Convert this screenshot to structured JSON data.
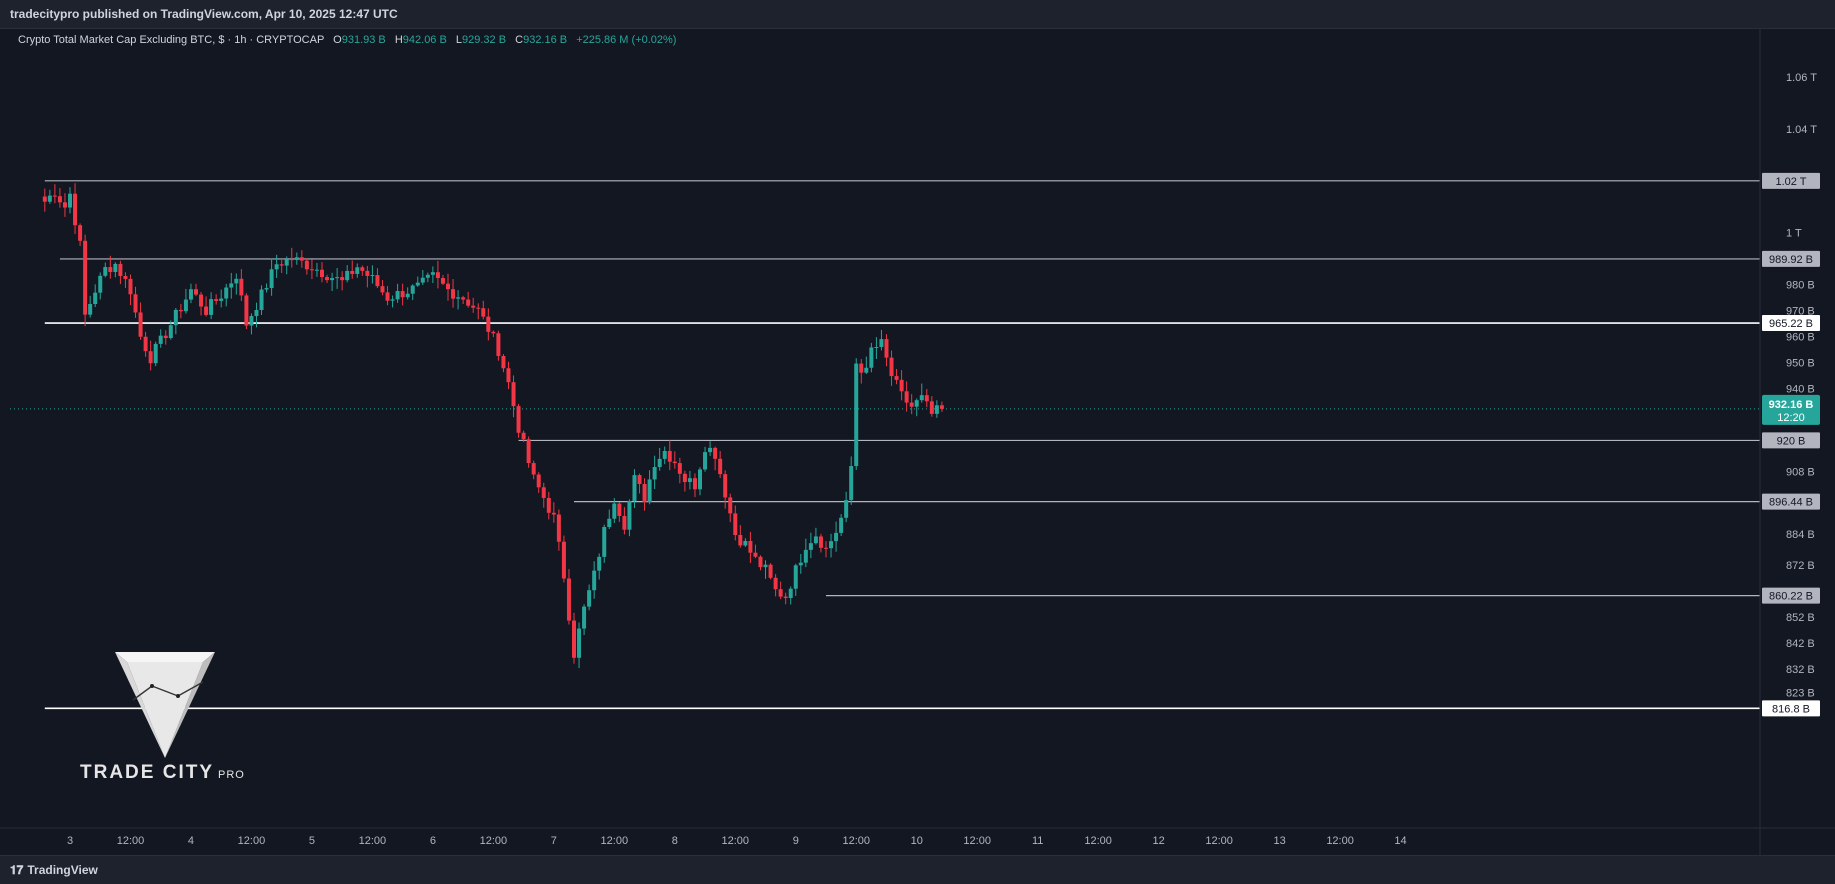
{
  "header": {
    "published": "tradecitypro published on TradingView.com, Apr 10, 2025 12:47 UTC"
  },
  "legend": {
    "symbol": "Crypto Total Market Cap Excluding BTC, $ · 1h · CRYPTOCAP",
    "o_label": "O",
    "o_value": "931.93 B",
    "h_label": "H",
    "h_value": "942.06 B",
    "l_label": "L",
    "l_value": "929.32 B",
    "c_label": "C",
    "c_value": "932.16 B",
    "change": "+225.86 M (+0.02%)"
  },
  "footer": {
    "brand": "TradingView",
    "icon": "tradingview-logo-icon"
  },
  "logo": {
    "text": "TRADE CITY",
    "suffix": "PRO",
    "icon": "trade-city-funnel-icon"
  },
  "colors": {
    "up": "#26a69a",
    "down": "#f23645",
    "background": "#131722",
    "level": "#b2b5be",
    "level_strong": "#ffffff"
  },
  "chart_data": {
    "type": "candlestick",
    "ylim": [
      810,
      1065
    ],
    "y_ticks": [
      {
        "value": 1060,
        "label": "1.06 T"
      },
      {
        "value": 1040,
        "label": "1.04 T"
      },
      {
        "value": 1000,
        "label": "1 T"
      },
      {
        "value": 980,
        "label": "980 B"
      },
      {
        "value": 970,
        "label": "970 B"
      },
      {
        "value": 960,
        "label": "960 B"
      },
      {
        "value": 950,
        "label": "950 B"
      },
      {
        "value": 940,
        "label": "940 B"
      },
      {
        "value": 908,
        "label": "908 B"
      },
      {
        "value": 884,
        "label": "884 B"
      },
      {
        "value": 872,
        "label": "872 B"
      },
      {
        "value": 852,
        "label": "852 B"
      },
      {
        "value": 842,
        "label": "842 B"
      },
      {
        "value": 832,
        "label": "832 B"
      },
      {
        "value": 823,
        "label": "823 B"
      }
    ],
    "x_ticks": [
      {
        "t": 0,
        "label": "3"
      },
      {
        "t": 12,
        "label": "12:00"
      },
      {
        "t": 24,
        "label": "4"
      },
      {
        "t": 36,
        "label": "12:00"
      },
      {
        "t": 48,
        "label": "5"
      },
      {
        "t": 60,
        "label": "12:00"
      },
      {
        "t": 72,
        "label": "6"
      },
      {
        "t": 84,
        "label": "12:00"
      },
      {
        "t": 96,
        "label": "7"
      },
      {
        "t": 108,
        "label": "12:00"
      },
      {
        "t": 120,
        "label": "8"
      },
      {
        "t": 132,
        "label": "12:00"
      },
      {
        "t": 144,
        "label": "9"
      },
      {
        "t": 156,
        "label": "12:00"
      },
      {
        "t": 168,
        "label": "10"
      },
      {
        "t": 180,
        "label": "12:00"
      },
      {
        "t": 192,
        "label": "11"
      },
      {
        "t": 204,
        "label": "12:00"
      },
      {
        "t": 216,
        "label": "12"
      },
      {
        "t": 228,
        "label": "12:00"
      },
      {
        "t": 240,
        "label": "13"
      },
      {
        "t": 252,
        "label": "12:00"
      },
      {
        "t": 264,
        "label": "14"
      }
    ],
    "levels": [
      {
        "value": 1020,
        "label": "1.02 T",
        "from_t": -5,
        "strong": false
      },
      {
        "value": 989.92,
        "label": "989.92 B",
        "from_t": -2,
        "strong": false
      },
      {
        "value": 965.22,
        "label": "965.22 B",
        "from_t": -5,
        "strong": true
      },
      {
        "value": 920,
        "label": "920 B",
        "from_t": 89,
        "strong": false
      },
      {
        "value": 896.44,
        "label": "896.44 B",
        "from_t": 100,
        "strong": false
      },
      {
        "value": 860.22,
        "label": "860.22 B",
        "from_t": 150,
        "strong": false
      },
      {
        "value": 816.8,
        "label": "816.8 B",
        "from_t": -5,
        "strong": true
      }
    ],
    "last_price": {
      "value": 932.16,
      "label": "932.16 B",
      "countdown": "12:20"
    },
    "keypoints": [
      {
        "t": -5,
        "v": 1012
      },
      {
        "t": -3,
        "v": 1016
      },
      {
        "t": -1,
        "v": 1010
      },
      {
        "t": 0,
        "v": 1015
      },
      {
        "t": 1,
        "v": 1005
      },
      {
        "t": 2,
        "v": 995
      },
      {
        "t": 3,
        "v": 968
      },
      {
        "t": 5,
        "v": 978
      },
      {
        "t": 7,
        "v": 986
      },
      {
        "t": 9,
        "v": 988
      },
      {
        "t": 12,
        "v": 978
      },
      {
        "t": 14,
        "v": 960
      },
      {
        "t": 16,
        "v": 952
      },
      {
        "t": 18,
        "v": 958
      },
      {
        "t": 21,
        "v": 968
      },
      {
        "t": 24,
        "v": 978
      },
      {
        "t": 27,
        "v": 970
      },
      {
        "t": 30,
        "v": 976
      },
      {
        "t": 33,
        "v": 984
      },
      {
        "t": 35,
        "v": 965
      },
      {
        "t": 38,
        "v": 976
      },
      {
        "t": 41,
        "v": 988
      },
      {
        "t": 44,
        "v": 990
      },
      {
        "t": 48,
        "v": 987
      },
      {
        "t": 51,
        "v": 984
      },
      {
        "t": 54,
        "v": 981
      },
      {
        "t": 57,
        "v": 987
      },
      {
        "t": 60,
        "v": 982
      },
      {
        "t": 63,
        "v": 975
      },
      {
        "t": 66,
        "v": 977
      },
      {
        "t": 69,
        "v": 979
      },
      {
        "t": 72,
        "v": 983
      },
      {
        "t": 75,
        "v": 978
      },
      {
        "t": 78,
        "v": 975
      },
      {
        "t": 81,
        "v": 970
      },
      {
        "t": 83,
        "v": 963
      },
      {
        "t": 85,
        "v": 955
      },
      {
        "t": 87,
        "v": 942
      },
      {
        "t": 89,
        "v": 925
      },
      {
        "t": 90,
        "v": 918
      },
      {
        "t": 92,
        "v": 905
      },
      {
        "t": 94,
        "v": 898
      },
      {
        "t": 96,
        "v": 890
      },
      {
        "t": 98,
        "v": 868
      },
      {
        "t": 100,
        "v": 838
      },
      {
        "t": 102,
        "v": 855
      },
      {
        "t": 104,
        "v": 868
      },
      {
        "t": 106,
        "v": 885
      },
      {
        "t": 108,
        "v": 898
      },
      {
        "t": 110,
        "v": 888
      },
      {
        "t": 112,
        "v": 905
      },
      {
        "t": 114,
        "v": 898
      },
      {
        "t": 116,
        "v": 912
      },
      {
        "t": 118,
        "v": 916
      },
      {
        "t": 120,
        "v": 912
      },
      {
        "t": 122,
        "v": 905
      },
      {
        "t": 124,
        "v": 903
      },
      {
        "t": 126,
        "v": 918
      },
      {
        "t": 128,
        "v": 915
      },
      {
        "t": 130,
        "v": 900
      },
      {
        "t": 132,
        "v": 884
      },
      {
        "t": 134,
        "v": 880
      },
      {
        "t": 136,
        "v": 874
      },
      {
        "t": 138,
        "v": 870
      },
      {
        "t": 140,
        "v": 862
      },
      {
        "t": 142,
        "v": 860
      },
      {
        "t": 144,
        "v": 870
      },
      {
        "t": 146,
        "v": 880
      },
      {
        "t": 148,
        "v": 884
      },
      {
        "t": 150,
        "v": 878
      },
      {
        "t": 152,
        "v": 885
      },
      {
        "t": 154,
        "v": 895
      },
      {
        "t": 155,
        "v": 910
      },
      {
        "t": 156,
        "v": 950
      },
      {
        "t": 158,
        "v": 946
      },
      {
        "t": 159,
        "v": 955
      },
      {
        "t": 161,
        "v": 957
      },
      {
        "t": 163,
        "v": 945
      },
      {
        "t": 165,
        "v": 937
      },
      {
        "t": 167,
        "v": 933
      },
      {
        "t": 169,
        "v": 936
      },
      {
        "t": 171,
        "v": 930
      },
      {
        "t": 173,
        "v": 932.16
      }
    ]
  }
}
